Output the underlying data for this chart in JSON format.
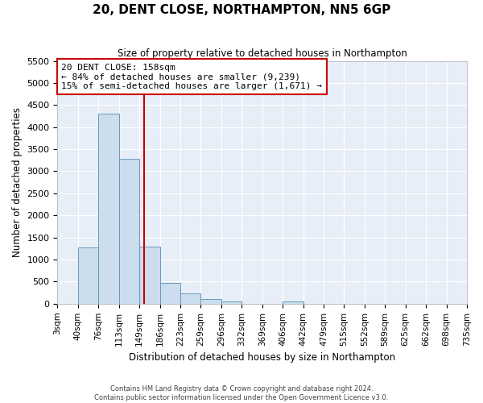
{
  "title": "20, DENT CLOSE, NORTHAMPTON, NN5 6GP",
  "subtitle": "Size of property relative to detached houses in Northampton",
  "xlabel": "Distribution of detached houses by size in Northampton",
  "ylabel": "Number of detached properties",
  "bar_color": "#ccdded",
  "bar_edge_color": "#6699bb",
  "background_color": "#e8eef8",
  "grid_color": "#ffffff",
  "bin_labels": [
    "3sqm",
    "40sqm",
    "76sqm",
    "113sqm",
    "149sqm",
    "186sqm",
    "223sqm",
    "259sqm",
    "296sqm",
    "332sqm",
    "369sqm",
    "406sqm",
    "442sqm",
    "479sqm",
    "515sqm",
    "552sqm",
    "589sqm",
    "625sqm",
    "662sqm",
    "698sqm",
    "735sqm"
  ],
  "bar_heights": [
    0,
    1270,
    4300,
    3280,
    1290,
    480,
    230,
    100,
    60,
    0,
    0,
    50,
    0,
    0,
    0,
    0,
    0,
    0,
    0,
    0
  ],
  "n_bins": 20,
  "vline_bin": 4.27,
  "vline_color": "#cc0000",
  "ylim": [
    0,
    5500
  ],
  "yticks": [
    0,
    500,
    1000,
    1500,
    2000,
    2500,
    3000,
    3500,
    4000,
    4500,
    5000,
    5500
  ],
  "annotation_title": "20 DENT CLOSE: 158sqm",
  "annotation_line1": "← 84% of detached houses are smaller (9,239)",
  "annotation_line2": "15% of semi-detached houses are larger (1,671) →",
  "annotation_box_color": "#ffffff",
  "annotation_box_edge": "#cc0000",
  "footer1": "Contains HM Land Registry data © Crown copyright and database right 2024.",
  "footer2": "Contains public sector information licensed under the Open Government Licence v3.0."
}
